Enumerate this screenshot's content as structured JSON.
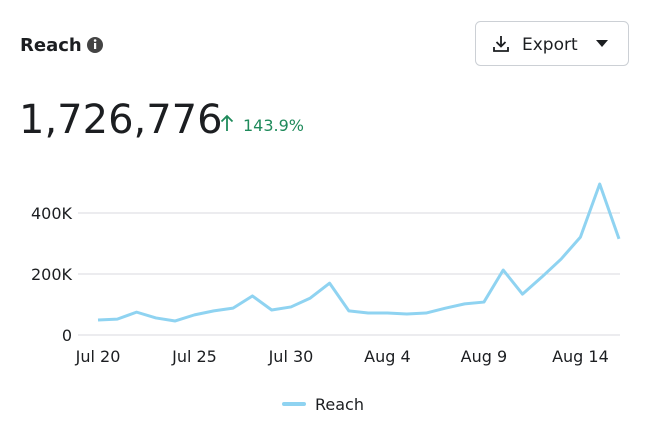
{
  "header": {
    "title": "Reach",
    "export": "Export",
    "total": "1,726,776",
    "change": "143.9%"
  },
  "chart_data": {
    "type": "line",
    "categories": [
      "Jul 20",
      null,
      null,
      null,
      null,
      "Jul 25",
      null,
      null,
      null,
      null,
      "Jul 30",
      null,
      null,
      null,
      null,
      "Aug 4",
      null,
      null,
      null,
      null,
      "Aug 9",
      null,
      null,
      null,
      null,
      "Aug 14",
      null,
      null
    ],
    "series": [
      {
        "name": "Reach",
        "color": "#8fd3f1",
        "values": [
          49000,
          52000,
          75000,
          56000,
          46000,
          66000,
          79000,
          88000,
          128000,
          82000,
          92000,
          121000,
          170000,
          79000,
          72000,
          72000,
          69000,
          72000,
          88000,
          102000,
          108000,
          213000,
          134000,
          190000,
          249000,
          321000,
          495000,
          315000
        ]
      }
    ],
    "ylim": [
      0,
      500000
    ],
    "yticks": [
      0,
      {
        "value": 200000,
        "label": "200K"
      },
      {
        "value": 400000,
        "label": "400K"
      }
    ],
    "grid": true,
    "legend": "bottom"
  }
}
